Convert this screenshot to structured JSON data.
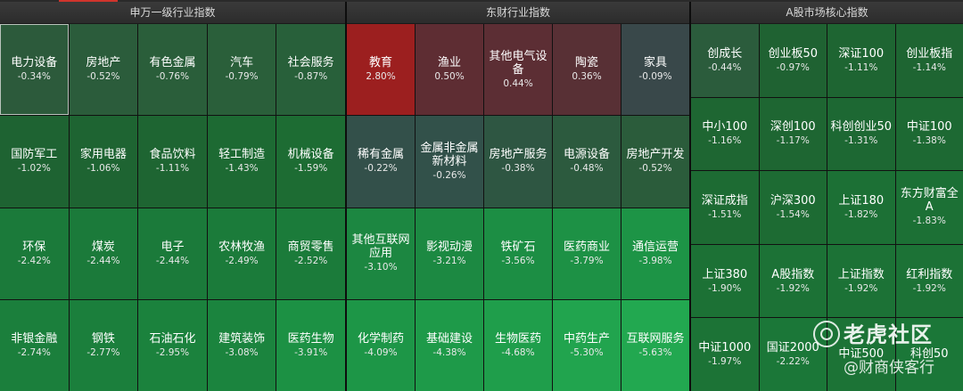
{
  "panels": [
    {
      "title": "申万一级行业指数",
      "columns": 5,
      "tiles": [
        {
          "name": "电力设备",
          "pct": "-0.34%",
          "color": "#2c5a3b",
          "selected": true
        },
        {
          "name": "房地产",
          "pct": "-0.52%",
          "color": "#2b5c3b"
        },
        {
          "name": "有色金属",
          "pct": "-0.76%",
          "color": "#2a5e3a"
        },
        {
          "name": "汽车",
          "pct": "-0.79%",
          "color": "#2a5f3a"
        },
        {
          "name": "社会服务",
          "pct": "-0.87%",
          "color": "#28603a"
        },
        {
          "name": "国防军工",
          "pct": "-1.02%",
          "color": "#1e6332"
        },
        {
          "name": "家用电器",
          "pct": "-1.06%",
          "color": "#1e6432"
        },
        {
          "name": "食品饮料",
          "pct": "-1.11%",
          "color": "#1e6532"
        },
        {
          "name": "轻工制造",
          "pct": "-1.43%",
          "color": "#1d6a33"
        },
        {
          "name": "机械设备",
          "pct": "-1.59%",
          "color": "#1d6c33"
        },
        {
          "name": "环保",
          "pct": "-2.42%",
          "color": "#1b7a3a"
        },
        {
          "name": "煤炭",
          "pct": "-2.44%",
          "color": "#1b7a3a"
        },
        {
          "name": "电子",
          "pct": "-2.44%",
          "color": "#1b7a3a"
        },
        {
          "name": "农林牧渔",
          "pct": "-2.49%",
          "color": "#1b7b3a"
        },
        {
          "name": "商贸零售",
          "pct": "-2.52%",
          "color": "#1b7b3a"
        },
        {
          "name": "非银金融",
          "pct": "-2.74%",
          "color": "#1b7f3c"
        },
        {
          "name": "钢铁",
          "pct": "-2.77%",
          "color": "#1b7f3c"
        },
        {
          "name": "石油石化",
          "pct": "-2.95%",
          "color": "#1b823d"
        },
        {
          "name": "建筑装饰",
          "pct": "-3.08%",
          "color": "#1b843e"
        },
        {
          "name": "医药生物",
          "pct": "-3.91%",
          "color": "#1c9144"
        }
      ]
    },
    {
      "title": "东财行业指数",
      "columns": 5,
      "tiles": [
        {
          "name": "教育",
          "pct": "2.80%",
          "color": "#9c1f1f"
        },
        {
          "name": "渔业",
          "pct": "0.50%",
          "color": "#5e2d33"
        },
        {
          "name": "其他电气设备",
          "pct": "0.44%",
          "color": "#5c2e34"
        },
        {
          "name": "陶瓷",
          "pct": "0.36%",
          "color": "#583035"
        },
        {
          "name": "家具",
          "pct": "-0.09%",
          "color": "#39484a"
        },
        {
          "name": "稀有金属",
          "pct": "-0.22%",
          "color": "#33504a"
        },
        {
          "name": "金属非金属新材料",
          "pct": "-0.26%",
          "color": "#32514a"
        },
        {
          "name": "房地产服务",
          "pct": "-0.38%",
          "color": "#2e5642"
        },
        {
          "name": "电源设备",
          "pct": "-0.48%",
          "color": "#2c5a3e"
        },
        {
          "name": "房地产开发",
          "pct": "-0.52%",
          "color": "#2b5c3b"
        },
        {
          "name": "其他互联网应用",
          "pct": "-3.10%",
          "color": "#1c8741"
        },
        {
          "name": "影视动漫",
          "pct": "-3.21%",
          "color": "#1c8942"
        },
        {
          "name": "铁矿石",
          "pct": "-3.56%",
          "color": "#1c8e44"
        },
        {
          "name": "医药商业",
          "pct": "-3.79%",
          "color": "#1d9145"
        },
        {
          "name": "通信运营",
          "pct": "-3.98%",
          "color": "#1d9446"
        },
        {
          "name": "化学制药",
          "pct": "-4.09%",
          "color": "#1d9647"
        },
        {
          "name": "基础建设",
          "pct": "-4.38%",
          "color": "#1e9a49"
        },
        {
          "name": "生物医药",
          "pct": "-4.68%",
          "color": "#1f9e4b"
        },
        {
          "name": "中药生产",
          "pct": "-5.30%",
          "color": "#21a44e"
        },
        {
          "name": "互联网服务",
          "pct": "-5.63%",
          "color": "#22a850"
        }
      ]
    },
    {
      "title": "A股市场核心指数",
      "columns": 4,
      "tiles": [
        {
          "name": "创成长",
          "pct": "-0.44%",
          "color": "#2b5c3c"
        },
        {
          "name": "创业板50",
          "pct": "-0.97%",
          "color": "#1f6232"
        },
        {
          "name": "深证100",
          "pct": "-1.11%",
          "color": "#1e6532"
        },
        {
          "name": "创业板指",
          "pct": "-1.14%",
          "color": "#1e6532"
        },
        {
          "name": "中小100",
          "pct": "-1.16%",
          "color": "#1e6632"
        },
        {
          "name": "深创100",
          "pct": "-1.17%",
          "color": "#1e6632"
        },
        {
          "name": "科创创业50",
          "pct": "-1.31%",
          "color": "#1d6833"
        },
        {
          "name": "中证100",
          "pct": "-1.38%",
          "color": "#1d6933"
        },
        {
          "name": "深证成指",
          "pct": "-1.51%",
          "color": "#1d6b33"
        },
        {
          "name": "沪深300",
          "pct": "-1.54%",
          "color": "#1d6b33"
        },
        {
          "name": "上证180",
          "pct": "-1.82%",
          "color": "#1c7035"
        },
        {
          "name": "东方财富全A",
          "pct": "-1.83%",
          "color": "#1c7035"
        },
        {
          "name": "上证380",
          "pct": "-1.90%",
          "color": "#1c7135"
        },
        {
          "name": "A股指数",
          "pct": "-1.92%",
          "color": "#1c7236"
        },
        {
          "name": "上证指数",
          "pct": "-1.92%",
          "color": "#1c7236"
        },
        {
          "name": "红利指数",
          "pct": "-1.92%",
          "color": "#1c7236"
        },
        {
          "name": "中证1000",
          "pct": "-1.97%",
          "color": "#1c7336"
        },
        {
          "name": "国证2000",
          "pct": "-2.22%",
          "color": "#1b7738"
        },
        {
          "name": "中证500",
          "pct": "",
          "color": "#1c7336"
        },
        {
          "name": "科创50",
          "pct": "",
          "color": "#1b7738"
        }
      ]
    }
  ],
  "watermark": {
    "brand": "老虎社区",
    "user": "@财商侠客行"
  }
}
